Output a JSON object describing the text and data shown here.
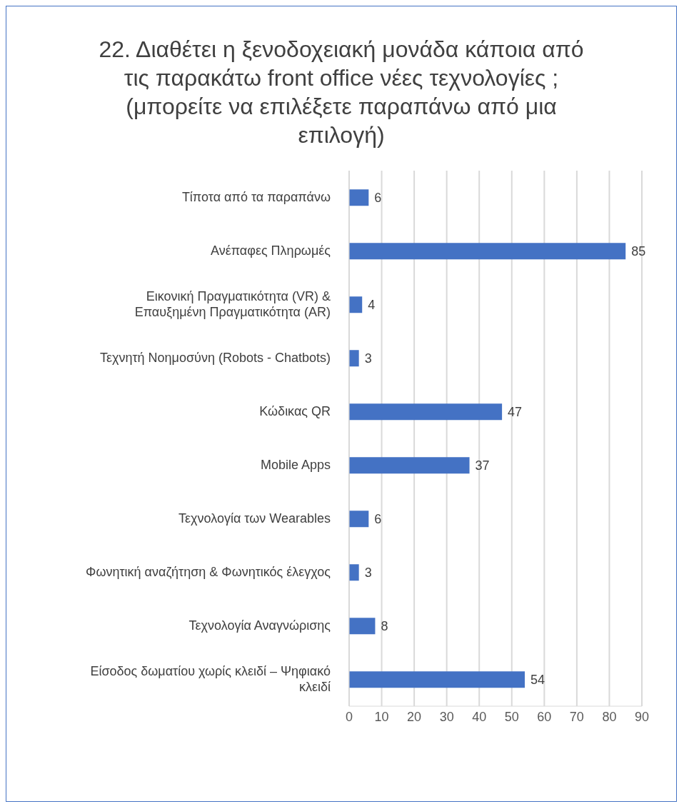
{
  "chart_data": {
    "type": "bar",
    "orientation": "horizontal",
    "title": "22. Διαθέτει η ξενοδοχειακή μονάδα κάποια από τις παρακάτω front office νέες τεχνολογίες ; (μπορείτε να επιλέξετε παραπάνω από μια επιλογή)",
    "categories": [
      "Τίποτα από τα παραπάνω",
      "Ανέπαφες Πληρωμές",
      "Εικονική Πραγματικότητα (VR) & Επαυξημένη Πραγματικότητα (AR)",
      "Τεχνητή Νοημοσύνη (Robots - Chatbots)",
      "Κώδικας QR",
      "Mobile Apps",
      "Τεχνολογία των Wearables",
      "Φωνητική αναζήτηση & Φωνητικός έλεγχος",
      "Τεχνολογία Αναγνώρισης",
      "Είσοδος δωματίου χωρίς κλειδί – Ψηφιακό κλειδί"
    ],
    "values": [
      6,
      85,
      4,
      3,
      47,
      37,
      6,
      3,
      8,
      54
    ],
    "color": "#4472c4",
    "xlim": [
      0,
      90
    ],
    "xticks": [
      0,
      10,
      20,
      30,
      40,
      50,
      60,
      70,
      80,
      90
    ],
    "grid": "x",
    "data_labels": true
  }
}
